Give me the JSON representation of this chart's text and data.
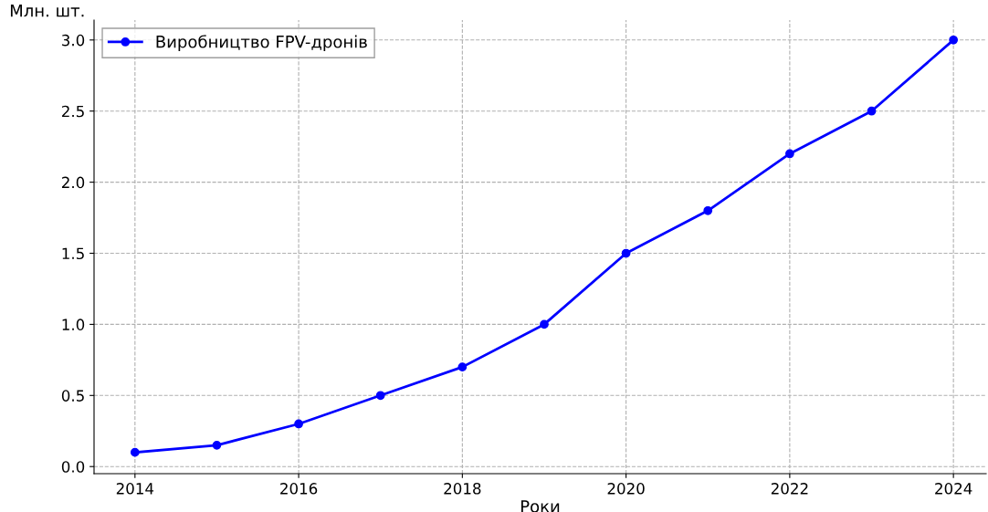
{
  "chart_data": {
    "type": "line",
    "xlabel": "Роки",
    "ylabel": "Млн. шт.",
    "x": [
      2014,
      2015,
      2016,
      2017,
      2018,
      2019,
      2020,
      2021,
      2022,
      2023,
      2024
    ],
    "series": [
      {
        "name": "Виробництво FPV-дронів",
        "color": "#0000ff",
        "values": [
          0.1,
          0.15,
          0.3,
          0.5,
          0.7,
          1.0,
          1.5,
          1.8,
          2.2,
          2.5,
          3.0
        ]
      }
    ],
    "xlim": [
      2013.5,
      2024.4
    ],
    "xticks": [
      2014,
      2016,
      2018,
      2020,
      2022,
      2024
    ],
    "ylim": [
      -0.05,
      3.14
    ],
    "yticks": [
      {
        "value": 0,
        "label": "0.0"
      },
      0.5,
      {
        "value": 1,
        "label": "1.0"
      },
      1.5,
      {
        "value": 2,
        "label": "2.0"
      },
      2.5,
      {
        "value": 3,
        "label": "3.0"
      }
    ],
    "grid": true,
    "legend": "top left",
    "marker": "circle",
    "line_style": "solid"
  }
}
